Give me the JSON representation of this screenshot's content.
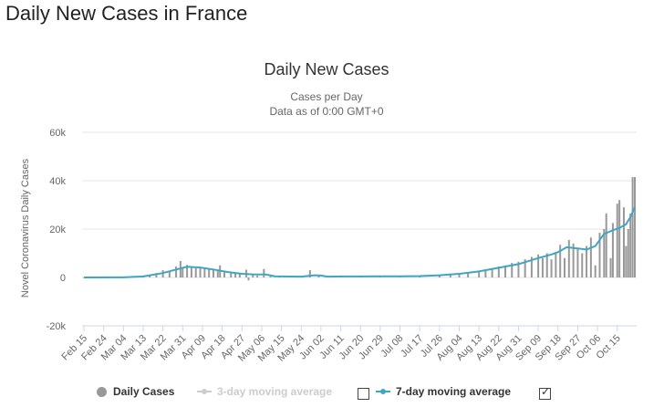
{
  "page": {
    "title": "Daily New Cases in France"
  },
  "chart_data": {
    "type": "bar",
    "title": "Daily New Cases",
    "subtitle_line1": "Cases per Day",
    "subtitle_line2": "Data as of 0:00 GMT+0",
    "ylabel": "Novel Coronavirus Daily Cases",
    "ylim": [
      -20000,
      60000
    ],
    "yticks": [
      -20000,
      0,
      20000,
      40000,
      60000
    ],
    "ytick_labels": [
      "-20k",
      "0",
      "20k",
      "40k",
      "60k"
    ],
    "x_labels": [
      "Feb 15",
      "Feb 24",
      "Mar 04",
      "Mar 13",
      "Mar 22",
      "Mar 31",
      "Apr 09",
      "Apr 18",
      "Apr 27",
      "May 06",
      "May 15",
      "May 24",
      "Jun 02",
      "Jun 11",
      "Jun 20",
      "Jun 29",
      "Jul 08",
      "Jul 17",
      "Jul 26",
      "Aug 04",
      "Aug 13",
      "Aug 22",
      "Aug 31",
      "Sep 09",
      "Sep 18",
      "Sep 27",
      "Oct 06",
      "Oct 15"
    ],
    "grid": true,
    "legend_position": "bottom",
    "colors": {
      "bars": "#999999",
      "ma7": "#3fa5c4",
      "ma3_disabled": "#cccccc"
    },
    "legend": [
      {
        "name": "Daily Cases",
        "enabled": true
      },
      {
        "name": "3-day moving average",
        "enabled": false
      },
      {
        "name": "7-day moving average",
        "enabled": true
      }
    ],
    "bars": [
      {
        "x": "Feb 15",
        "y": 0
      },
      {
        "x": "Feb 24",
        "y": 5
      },
      {
        "x": "Mar 04",
        "y": 120
      },
      {
        "x": "Mar 13",
        "y": 800
      },
      {
        "x": "Mar 16",
        "y": 1200
      },
      {
        "x": "Mar 19",
        "y": 1800
      },
      {
        "x": "Mar 22",
        "y": 3000
      },
      {
        "x": "Mar 25",
        "y": 2800
      },
      {
        "x": "Mar 28",
        "y": 4500
      },
      {
        "x": "Mar 30",
        "y": 6800
      },
      {
        "x": "Mar 31",
        "y": 4000
      },
      {
        "x": "Apr 02",
        "y": 5200
      },
      {
        "x": "Apr 04",
        "y": 4300
      },
      {
        "x": "Apr 06",
        "y": 3800
      },
      {
        "x": "Apr 08",
        "y": 4200
      },
      {
        "x": "Apr 10",
        "y": 4000
      },
      {
        "x": "Apr 12",
        "y": 3500
      },
      {
        "x": "Apr 14",
        "y": 3000
      },
      {
        "x": "Apr 16",
        "y": 2600
      },
      {
        "x": "Apr 17",
        "y": 5000
      },
      {
        "x": "Apr 19",
        "y": 2800
      },
      {
        "x": "Apr 22",
        "y": 2200
      },
      {
        "x": "Apr 24",
        "y": 1800
      },
      {
        "x": "Apr 26",
        "y": 1500
      },
      {
        "x": "Apr 29",
        "y": 3200
      },
      {
        "x": "Apr 30",
        "y": -1200
      },
      {
        "x": "May 02",
        "y": 1000
      },
      {
        "x": "May 04",
        "y": 800
      },
      {
        "x": "May 07",
        "y": 3500
      },
      {
        "x": "May 10",
        "y": 500
      },
      {
        "x": "May 14",
        "y": 400
      },
      {
        "x": "May 20",
        "y": 300
      },
      {
        "x": "May 28",
        "y": 3000
      },
      {
        "x": "Jun 01",
        "y": 500
      },
      {
        "x": "Jun 05",
        "y": 400
      },
      {
        "x": "Jun 11",
        "y": 400
      },
      {
        "x": "Jun 20",
        "y": 450
      },
      {
        "x": "Jun 29",
        "y": 450
      },
      {
        "x": "Jul 08",
        "y": 500
      },
      {
        "x": "Jul 17",
        "y": 600
      },
      {
        "x": "Jul 26",
        "y": 1000
      },
      {
        "x": "Jul 31",
        "y": 1300
      },
      {
        "x": "Aug 04",
        "y": 1500
      },
      {
        "x": "Aug 08",
        "y": 2200
      },
      {
        "x": "Aug 13",
        "y": 2600
      },
      {
        "x": "Aug 16",
        "y": 3200
      },
      {
        "x": "Aug 19",
        "y": 3800
      },
      {
        "x": "Aug 22",
        "y": 4500
      },
      {
        "x": "Aug 25",
        "y": 5000
      },
      {
        "x": "Aug 28",
        "y": 6000
      },
      {
        "x": "Aug 31",
        "y": 6500
      },
      {
        "x": "Sep 03",
        "y": 7500
      },
      {
        "x": "Sep 06",
        "y": 8500
      },
      {
        "x": "Sep 09",
        "y": 9500
      },
      {
        "x": "Sep 11",
        "y": 8000
      },
      {
        "x": "Sep 13",
        "y": 10000
      },
      {
        "x": "Sep 15",
        "y": 7500
      },
      {
        "x": "Sep 17",
        "y": 10500
      },
      {
        "x": "Sep 19",
        "y": 13500
      },
      {
        "x": "Sep 21",
        "y": 8000
      },
      {
        "x": "Sep 23",
        "y": 15500
      },
      {
        "x": "Sep 25",
        "y": 14000
      },
      {
        "x": "Sep 27",
        "y": 12000
      },
      {
        "x": "Sep 29",
        "y": 10000
      },
      {
        "x": "Oct 01",
        "y": 13000
      },
      {
        "x": "Oct 03",
        "y": 16500
      },
      {
        "x": "Oct 05",
        "y": 5000
      },
      {
        "x": "Oct 07",
        "y": 18500
      },
      {
        "x": "Oct 09",
        "y": 20000
      },
      {
        "x": "Oct 10",
        "y": 26500
      },
      {
        "x": "Oct 12",
        "y": 8000
      },
      {
        "x": "Oct 13",
        "y": 22500
      },
      {
        "x": "Oct 15",
        "y": 30500
      },
      {
        "x": "Oct 16",
        "y": 32000
      },
      {
        "x": "Oct 18",
        "y": 29000
      },
      {
        "x": "Oct 19",
        "y": 13000
      },
      {
        "x": "Oct 20",
        "y": 20000
      },
      {
        "x": "Oct 21",
        "y": 26500
      },
      {
        "x": "Oct 22",
        "y": 41500
      },
      {
        "x": "Oct 23",
        "y": 41500
      }
    ],
    "ma7": [
      {
        "x": "Feb 15",
        "y": 0
      },
      {
        "x": "Mar 04",
        "y": 50
      },
      {
        "x": "Mar 13",
        "y": 400
      },
      {
        "x": "Mar 22",
        "y": 1800
      },
      {
        "x": "Mar 28",
        "y": 3300
      },
      {
        "x": "Apr 02",
        "y": 4400
      },
      {
        "x": "Apr 08",
        "y": 4100
      },
      {
        "x": "Apr 14",
        "y": 3300
      },
      {
        "x": "Apr 20",
        "y": 2300
      },
      {
        "x": "Apr 27",
        "y": 1500
      },
      {
        "x": "May 02",
        "y": 1300
      },
      {
        "x": "May 08",
        "y": 1200
      },
      {
        "x": "May 12",
        "y": 500
      },
      {
        "x": "May 15",
        "y": 400
      },
      {
        "x": "May 24",
        "y": 350
      },
      {
        "x": "May 30",
        "y": 900
      },
      {
        "x": "Jun 02",
        "y": 800
      },
      {
        "x": "Jun 05",
        "y": 350
      },
      {
        "x": "Jun 11",
        "y": 400
      },
      {
        "x": "Jun 20",
        "y": 400
      },
      {
        "x": "Jun 29",
        "y": 450
      },
      {
        "x": "Jul 08",
        "y": 500
      },
      {
        "x": "Jul 17",
        "y": 550
      },
      {
        "x": "Jul 26",
        "y": 900
      },
      {
        "x": "Aug 04",
        "y": 1500
      },
      {
        "x": "Aug 13",
        "y": 2500
      },
      {
        "x": "Aug 22",
        "y": 4000
      },
      {
        "x": "Aug 31",
        "y": 5500
      },
      {
        "x": "Sep 09",
        "y": 8000
      },
      {
        "x": "Sep 15",
        "y": 9500
      },
      {
        "x": "Sep 18",
        "y": 10500
      },
      {
        "x": "Sep 22",
        "y": 12500
      },
      {
        "x": "Sep 27",
        "y": 12000
      },
      {
        "x": "Oct 01",
        "y": 11500
      },
      {
        "x": "Oct 05",
        "y": 13000
      },
      {
        "x": "Oct 09",
        "y": 18000
      },
      {
        "x": "Oct 13",
        "y": 19500
      },
      {
        "x": "Oct 16",
        "y": 20500
      },
      {
        "x": "Oct 19",
        "y": 22000
      },
      {
        "x": "Oct 21",
        "y": 25000
      },
      {
        "x": "Oct 23",
        "y": 29000
      }
    ]
  }
}
